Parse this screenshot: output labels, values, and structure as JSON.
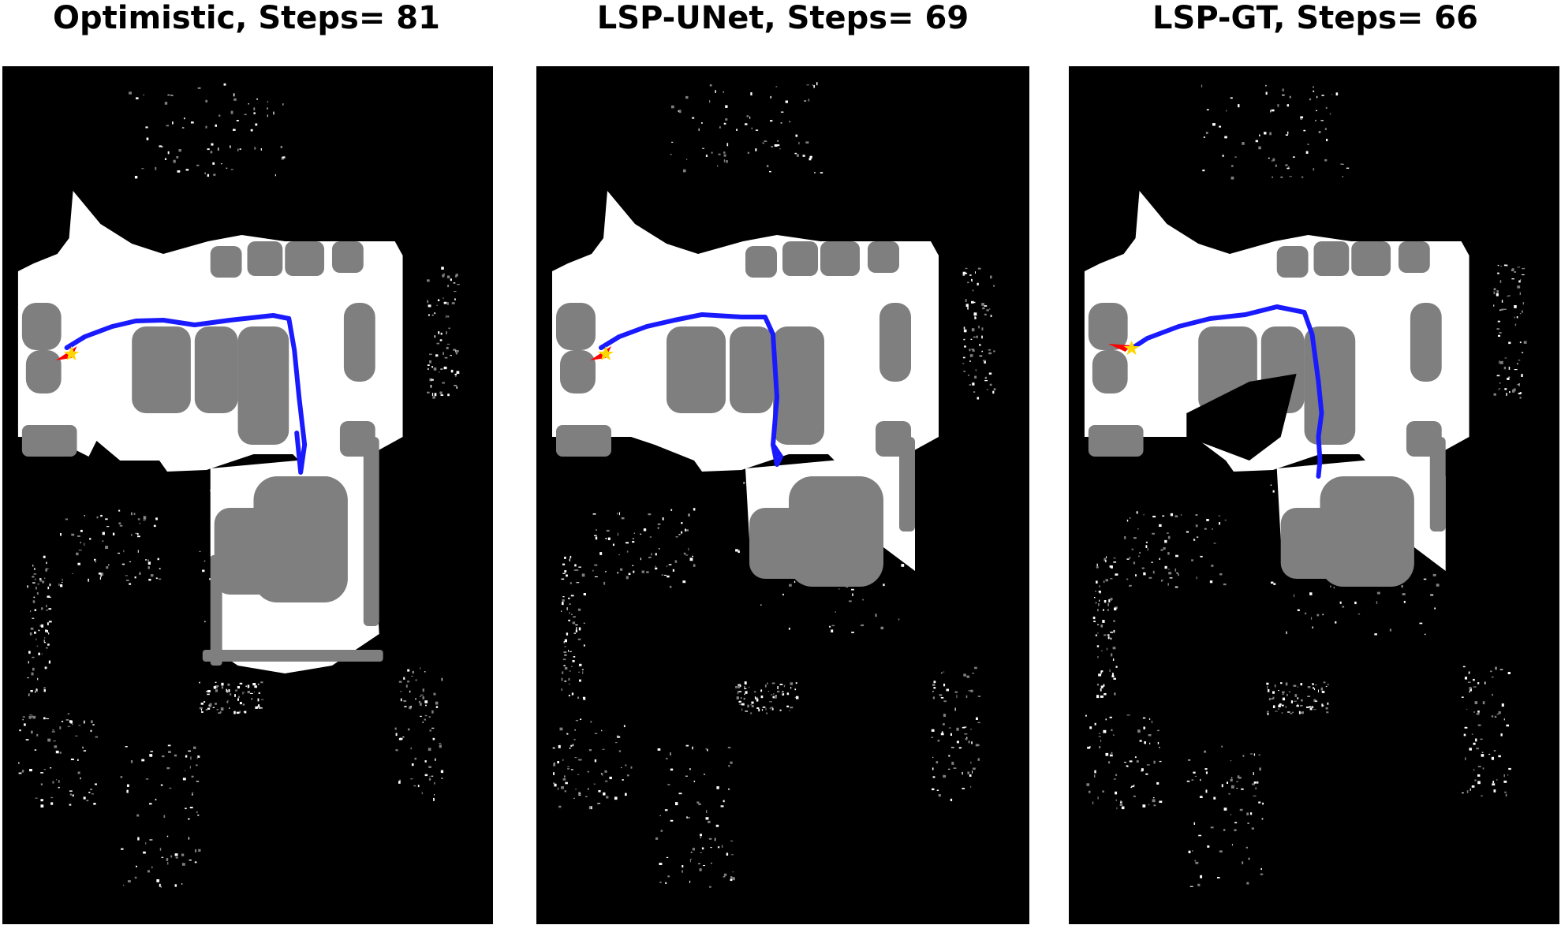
{
  "panels": [
    {
      "title": "Optimistic, Steps= 81"
    },
    {
      "title": "LSP-UNet, Steps= 69"
    },
    {
      "title": "LSP-GT, Steps= 66"
    }
  ],
  "colors": {
    "unknown": "#000000",
    "obstacle": "#7f7f7f",
    "free": "#ffffff",
    "path": "#1a1aff",
    "robot": "#ff0000",
    "goal": "#ffd700"
  }
}
